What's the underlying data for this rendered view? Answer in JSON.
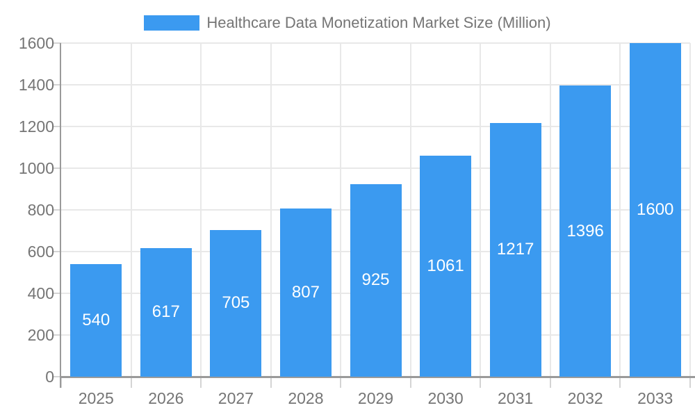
{
  "legend": {
    "label": "Healthcare Data Monetization Market Size (Million)",
    "swatch_color": "#3b9af0"
  },
  "chart_data": {
    "type": "bar",
    "title": "Healthcare Data Monetization Market Size (Million)",
    "categories": [
      "2025",
      "2026",
      "2027",
      "2028",
      "2029",
      "2030",
      "2031",
      "2032",
      "2033"
    ],
    "values": [
      540,
      617,
      705,
      807,
      925,
      1061,
      1217,
      1396,
      1600
    ],
    "value_labels_visible": true,
    "xlabel": "",
    "ylabel": "",
    "ylim": [
      0,
      1600
    ],
    "ytick_step": 200,
    "yticks": [
      0,
      200,
      400,
      600,
      800,
      1000,
      1200,
      1400,
      1600
    ],
    "grid": "both",
    "legend_position": "top-center",
    "colors": {
      "bar": "#3b9af0",
      "value_label": "#ffffff",
      "axis_text": "#757575",
      "grid_line": "#e8e8e8",
      "tick_line": "#d4d4d4",
      "axis_line": "#9a9a9a"
    }
  }
}
